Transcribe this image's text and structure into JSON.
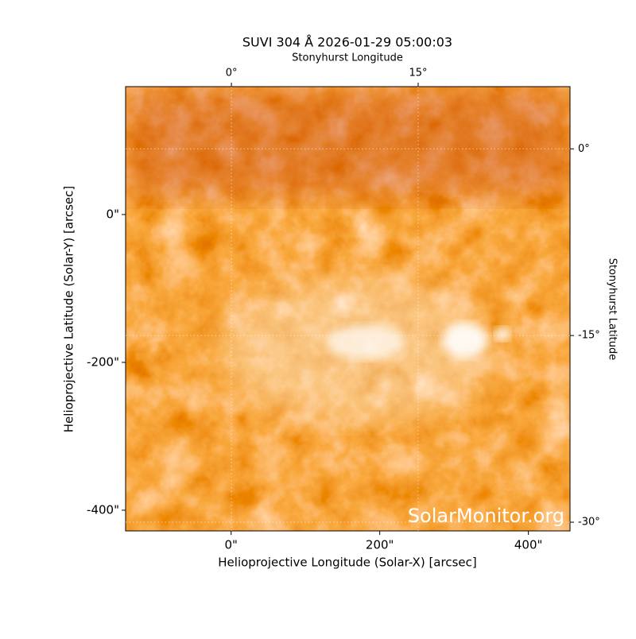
{
  "chart_data": {
    "type": "image",
    "title": "SUVI 304 Å 2026-01-29 05:00:03",
    "xlabel": "Helioprojective Longitude (Solar-X) [arcsec]",
    "ylabel": "Helioprojective Latitude (Solar-Y) [arcsec]",
    "x2label": "Stonyhurst Longitude",
    "y2label": "Stonyhurst Latitude",
    "xlim": [
      -142,
      456
    ],
    "ylim": [
      -428,
      173
    ],
    "xticks": [
      {
        "value": 0,
        "label": "0\""
      },
      {
        "value": 200,
        "label": "200\""
      },
      {
        "value": 400,
        "label": "400\""
      }
    ],
    "yticks": [
      {
        "value": 0,
        "label": "0\""
      },
      {
        "value": -200,
        "label": "-200\""
      },
      {
        "value": -400,
        "label": "-400\""
      }
    ],
    "x2lim": [
      -8.5,
      27.2
    ],
    "y2lim": [
      -30.7,
      5.0
    ],
    "x2ticks": [
      {
        "value": 0,
        "label": "0°"
      },
      {
        "value": 15,
        "label": "15°"
      }
    ],
    "y2ticks": [
      {
        "value": 0,
        "label": "0°"
      },
      {
        "value": -15,
        "label": "-15°"
      },
      {
        "value": -30,
        "label": "-30°"
      }
    ],
    "grid": true,
    "watermark": "SolarMonitor.org"
  }
}
